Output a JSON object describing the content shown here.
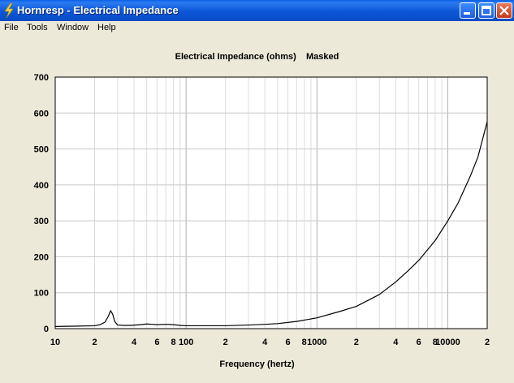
{
  "window": {
    "title": "Hornresp - Electrical Impedance"
  },
  "menu": [
    "File",
    "Tools",
    "Window",
    "Help"
  ],
  "chart_data": {
    "type": "line",
    "title": "Electrical Impedance (ohms)    Masked",
    "xlabel": "Frequency (hertz)",
    "ylabel": "",
    "x_scale": "log",
    "xlim": [
      10,
      20000
    ],
    "ylim": [
      0,
      700
    ],
    "grid": true,
    "y_ticks": [
      "0",
      "100",
      "200",
      "300",
      "400",
      "500",
      "600",
      "700"
    ],
    "x_ticks": [
      {
        "value": 10,
        "label": "10"
      },
      {
        "value": 20,
        "label": "2"
      },
      {
        "value": 40,
        "label": "4"
      },
      {
        "value": 60,
        "label": "6"
      },
      {
        "value": 80,
        "label": "8"
      },
      {
        "value": 100,
        "label": "100"
      },
      {
        "value": 200,
        "label": "2"
      },
      {
        "value": 400,
        "label": "4"
      },
      {
        "value": 600,
        "label": "6"
      },
      {
        "value": 800,
        "label": "8"
      },
      {
        "value": 1000,
        "label": "1000"
      },
      {
        "value": 2000,
        "label": "2"
      },
      {
        "value": 4000,
        "label": "4"
      },
      {
        "value": 6000,
        "label": "6"
      },
      {
        "value": 8000,
        "label": "8"
      },
      {
        "value": 10000,
        "label": "10000"
      },
      {
        "value": 20000,
        "label": "2"
      }
    ],
    "series": [
      {
        "x": [
          10,
          15,
          20,
          22,
          24,
          25.5,
          26.5,
          27.5,
          28.5,
          30,
          33,
          38,
          45,
          50,
          55,
          60,
          70,
          80,
          90,
          100,
          150,
          200,
          300,
          400,
          500,
          700,
          1000,
          1500,
          2000,
          3000,
          4000,
          5000,
          6000,
          8000,
          10000,
          12000,
          15000,
          17000,
          20000
        ],
        "y": [
          6,
          7,
          8,
          11,
          18,
          35,
          50,
          40,
          20,
          10,
          9,
          9,
          11,
          13,
          12,
          11,
          12,
          11,
          9,
          8,
          8,
          8,
          10,
          12,
          14,
          20,
          30,
          48,
          62,
          95,
          130,
          162,
          190,
          245,
          300,
          350,
          428,
          478,
          576
        ]
      }
    ]
  }
}
